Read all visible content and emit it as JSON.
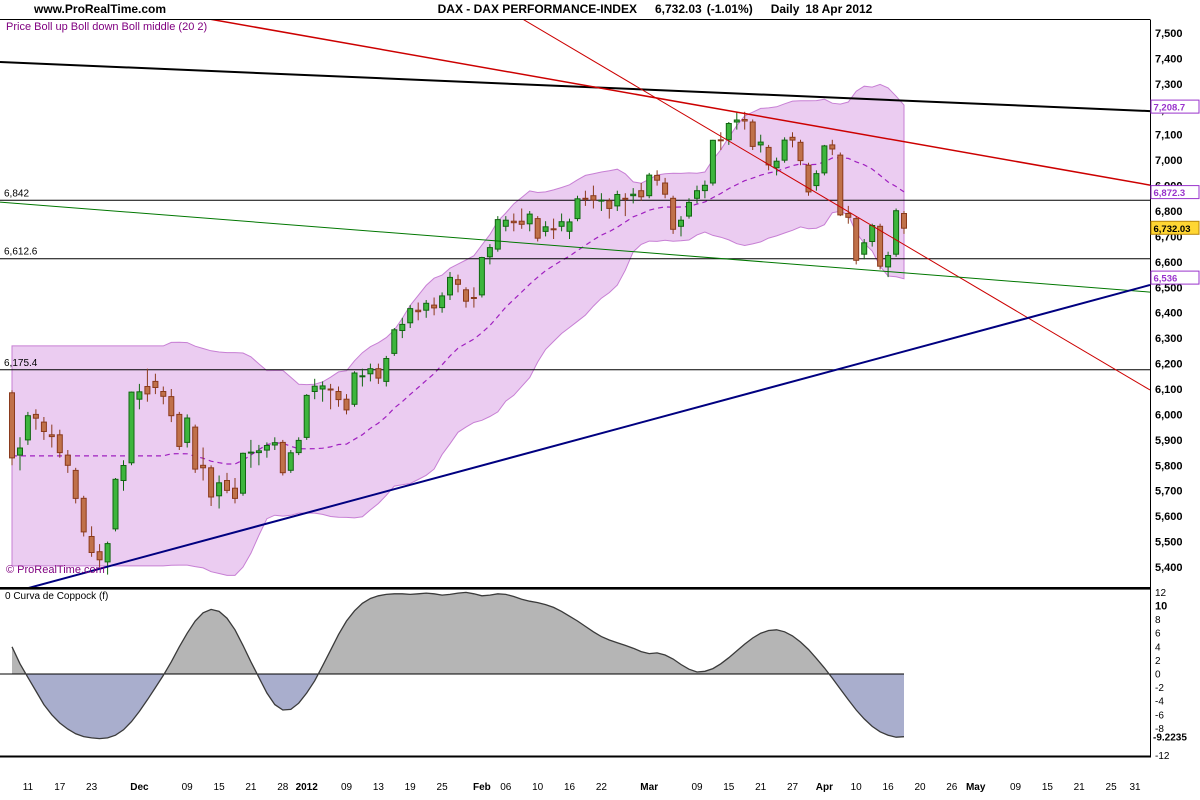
{
  "header": {
    "site": "www.ProRealTime.com",
    "instrument": "DAX - DAX PERFORMANCE-INDEX",
    "last_price": "6,732.03",
    "change": "(-1.01%)",
    "timeframe": "Daily",
    "date": "18 Apr 2012"
  },
  "price_panel": {
    "indicator_label": "Price Boll up Boll down Boll middle (20 2)",
    "copyright": "© ProRealTime.com",
    "level_labels": [
      {
        "label": "6,842",
        "price": 6842
      },
      {
        "label": "6,612.6",
        "price": 6612.6
      },
      {
        "label": "6,175.4",
        "price": 6175.4
      }
    ],
    "axis_labels": [
      {
        "label": "7,500",
        "price": 7500
      },
      {
        "label": "7,400",
        "price": 7400
      },
      {
        "label": "7,300",
        "price": 7300
      },
      {
        "label": "7,200",
        "price": 7200
      },
      {
        "label": "7,100",
        "price": 7100
      },
      {
        "label": "7,000",
        "price": 7000
      },
      {
        "label": "6,900",
        "price": 6900
      },
      {
        "label": "6,800",
        "price": 6800
      },
      {
        "label": "6,700",
        "price": 6700
      },
      {
        "label": "6,600",
        "price": 6600
      },
      {
        "label": "6,500",
        "price": 6500
      },
      {
        "label": "6,400",
        "price": 6400
      },
      {
        "label": "6,300",
        "price": 6300
      },
      {
        "label": "6,200",
        "price": 6200
      },
      {
        "label": "6,100",
        "price": 6100
      },
      {
        "label": "6,000",
        "price": 6000
      },
      {
        "label": "5,900",
        "price": 5900
      },
      {
        "label": "5,800",
        "price": 5800
      },
      {
        "label": "5,700",
        "price": 5700
      },
      {
        "label": "5,600",
        "price": 5600
      },
      {
        "label": "5,500",
        "price": 5500
      },
      {
        "label": "5,400",
        "price": 5400
      }
    ],
    "value_tags": [
      {
        "label": "7,208.7",
        "price": 7208.7,
        "style": "violet"
      },
      {
        "label": "6,872.3",
        "price": 6872.3,
        "style": "violet"
      },
      {
        "label": "6,732.03",
        "price": 6732.03,
        "style": "yellow"
      },
      {
        "label": "6,536",
        "price": 6536,
        "style": "violet"
      }
    ]
  },
  "indicator_panel": {
    "label": "0 Curva de Coppock (f)",
    "axis_labels": [
      {
        "label": "12",
        "value": 12,
        "bold": false
      },
      {
        "label": "10",
        "value": 10,
        "bold": true
      },
      {
        "label": "8",
        "value": 8,
        "bold": false
      },
      {
        "label": "6",
        "value": 6,
        "bold": false
      },
      {
        "label": "4",
        "value": 4,
        "bold": false
      },
      {
        "label": "2",
        "value": 2,
        "bold": false
      },
      {
        "label": "0",
        "value": 0,
        "bold": false
      },
      {
        "label": "-2",
        "value": -2,
        "bold": false
      },
      {
        "label": "-4",
        "value": -4,
        "bold": false
      },
      {
        "label": "-6",
        "value": -6,
        "bold": false
      },
      {
        "label": "-8",
        "value": -8,
        "bold": false
      },
      {
        "label": "-12",
        "value": -12,
        "bold": false
      }
    ],
    "current_value_label": "-9.2235"
  },
  "time_axis": {
    "ticks": [
      {
        "i": 2,
        "label": "11",
        "bold": false
      },
      {
        "i": 6,
        "label": "17",
        "bold": false
      },
      {
        "i": 10,
        "label": "23",
        "bold": false
      },
      {
        "i": 16,
        "label": "Dec",
        "bold": true
      },
      {
        "i": 22,
        "label": "09",
        "bold": false
      },
      {
        "i": 26,
        "label": "15",
        "bold": false
      },
      {
        "i": 30,
        "label": "21",
        "bold": false
      },
      {
        "i": 34,
        "label": "28",
        "bold": false
      },
      {
        "i": 37,
        "label": "2012",
        "bold": true
      },
      {
        "i": 42,
        "label": "09",
        "bold": false
      },
      {
        "i": 46,
        "label": "13",
        "bold": false
      },
      {
        "i": 50,
        "label": "19",
        "bold": false
      },
      {
        "i": 54,
        "label": "25",
        "bold": false
      },
      {
        "i": 59,
        "label": "Feb",
        "bold": true
      },
      {
        "i": 62,
        "label": "06",
        "bold": false
      },
      {
        "i": 66,
        "label": "10",
        "bold": false
      },
      {
        "i": 70,
        "label": "16",
        "bold": false
      },
      {
        "i": 74,
        "label": "22",
        "bold": false
      },
      {
        "i": 80,
        "label": "Mar",
        "bold": true
      },
      {
        "i": 86,
        "label": "09",
        "bold": false
      },
      {
        "i": 90,
        "label": "15",
        "bold": false
      },
      {
        "i": 94,
        "label": "21",
        "bold": false
      },
      {
        "i": 98,
        "label": "27",
        "bold": false
      },
      {
        "i": 102,
        "label": "Apr",
        "bold": true
      },
      {
        "i": 106,
        "label": "10",
        "bold": false
      },
      {
        "i": 110,
        "label": "16",
        "bold": false
      },
      {
        "i": 114,
        "label": "20",
        "bold": false
      },
      {
        "i": 118,
        "label": "26",
        "bold": false
      },
      {
        "i": 121,
        "label": "May",
        "bold": true
      },
      {
        "i": 126,
        "label": "09",
        "bold": false
      },
      {
        "i": 130,
        "label": "15",
        "bold": false
      },
      {
        "i": 134,
        "label": "21",
        "bold": false
      },
      {
        "i": 138,
        "label": "25",
        "bold": false
      },
      {
        "i": 141,
        "label": "31",
        "bold": false
      }
    ]
  },
  "colors": {
    "candle_up_fill": "#3db53d",
    "candle_up_stroke": "#116611",
    "candle_down_fill": "#c0714a",
    "candle_down_stroke": "#8a3a1c",
    "band_fill": "#e9c6f0",
    "band_edge": "#c77fd4",
    "boll_middle": "#a020c0",
    "purple_text": "#800080",
    "coppock_pos_fill": "#b5b5b5",
    "coppock_neg_fill": "#a9aecd",
    "coppock_line": "#3a3a3a",
    "tag_violet": "#9933cc",
    "tag_yellow_bg": "#ffd633",
    "tag_yellow_border": "#b8860b"
  },
  "chart_data": [
    {
      "type": "candlestick",
      "title": "DAX - DAX PERFORMANCE-INDEX",
      "ylim": [
        5400,
        7500
      ],
      "x_slots": 142,
      "bollinger": {
        "period": 20,
        "deviations": 2
      },
      "horizontal_levels": [
        6842,
        6612.6,
        6175.4
      ],
      "trendlines": [
        {
          "name": "black-resistance-trendline",
          "color": "#000000",
          "width": 2,
          "price_at_left": 7386,
          "price_at_right": 7193
        },
        {
          "name": "red-downtrend-shallow",
          "color": "#cc0000",
          "width": 1.5,
          "price_at_left": 7700,
          "price_at_right": 6902
        },
        {
          "name": "red-downtrend-steep",
          "color": "#cc0000",
          "width": 1,
          "price_at_left": 8770,
          "price_at_right": 6096
        },
        {
          "name": "green-downtrend-line",
          "color": "#007700",
          "width": 1,
          "price_at_left": 6835,
          "price_at_right": 6481
        },
        {
          "name": "blue-uptrend-support",
          "color": "#000080",
          "width": 2,
          "price_at_left": 5287,
          "price_at_right": 6509
        }
      ],
      "candles_ohlc": [
        [
          6085,
          6095,
          5800,
          5829
        ],
        [
          5840,
          5910,
          5780,
          5868
        ],
        [
          5900,
          6010,
          5880,
          5995
        ],
        [
          6000,
          6020,
          5940,
          5985
        ],
        [
          5970,
          5990,
          5900,
          5933
        ],
        [
          5920,
          5960,
          5870,
          5913
        ],
        [
          5920,
          5940,
          5830,
          5850
        ],
        [
          5840,
          5860,
          5770,
          5800
        ],
        [
          5780,
          5790,
          5650,
          5670
        ],
        [
          5670,
          5680,
          5520,
          5538
        ],
        [
          5520,
          5560,
          5440,
          5457
        ],
        [
          5460,
          5490,
          5400,
          5428
        ],
        [
          5420,
          5500,
          5370,
          5492
        ],
        [
          5550,
          5750,
          5540,
          5745
        ],
        [
          5740,
          5820,
          5700,
          5799
        ],
        [
          5810,
          6090,
          5800,
          6088
        ],
        [
          6060,
          6120,
          6020,
          6089
        ],
        [
          6110,
          6180,
          6050,
          6081
        ],
        [
          6130,
          6160,
          6080,
          6106
        ],
        [
          6090,
          6110,
          6040,
          6071
        ],
        [
          6070,
          6100,
          5970,
          5995
        ],
        [
          6000,
          6010,
          5860,
          5874
        ],
        [
          5890,
          6000,
          5870,
          5986
        ],
        [
          5950,
          5960,
          5770,
          5785
        ],
        [
          5800,
          5870,
          5740,
          5790
        ],
        [
          5790,
          5800,
          5640,
          5675
        ],
        [
          5680,
          5760,
          5630,
          5731
        ],
        [
          5740,
          5770,
          5690,
          5701
        ],
        [
          5710,
          5750,
          5650,
          5670
        ],
        [
          5690,
          5850,
          5680,
          5847
        ],
        [
          5850,
          5900,
          5790,
          5852
        ],
        [
          5850,
          5880,
          5800,
          5857
        ],
        [
          5860,
          5890,
          5830,
          5878
        ],
        [
          5880,
          5910,
          5860,
          5889
        ],
        [
          5890,
          5900,
          5760,
          5771
        ],
        [
          5780,
          5860,
          5770,
          5849
        ],
        [
          5850,
          5910,
          5840,
          5898
        ],
        [
          5910,
          6080,
          5900,
          6075
        ],
        [
          6090,
          6140,
          6060,
          6111
        ],
        [
          6100,
          6130,
          6050,
          6112
        ],
        [
          6100,
          6120,
          6020,
          6096
        ],
        [
          6090,
          6110,
          6030,
          6058
        ],
        [
          6060,
          6080,
          6000,
          6018
        ],
        [
          6040,
          6170,
          6030,
          6163
        ],
        [
          6150,
          6180,
          6110,
          6152
        ],
        [
          6160,
          6200,
          6130,
          6180
        ],
        [
          6180,
          6200,
          6120,
          6143
        ],
        [
          6130,
          6230,
          6110,
          6220
        ],
        [
          6240,
          6340,
          6230,
          6333
        ],
        [
          6330,
          6380,
          6300,
          6354
        ],
        [
          6360,
          6430,
          6340,
          6416
        ],
        [
          6410,
          6440,
          6370,
          6404
        ],
        [
          6410,
          6450,
          6380,
          6437
        ],
        [
          6430,
          6460,
          6390,
          6419
        ],
        [
          6420,
          6480,
          6400,
          6466
        ],
        [
          6470,
          6560,
          6450,
          6539
        ],
        [
          6530,
          6550,
          6480,
          6512
        ],
        [
          6490,
          6500,
          6420,
          6445
        ],
        [
          6460,
          6500,
          6420,
          6459
        ],
        [
          6470,
          6620,
          6460,
          6617
        ],
        [
          6620,
          6670,
          6590,
          6656
        ],
        [
          6650,
          6780,
          6640,
          6766
        ],
        [
          6740,
          6780,
          6720,
          6764
        ],
        [
          6760,
          6790,
          6720,
          6754
        ],
        [
          6760,
          6810,
          6730,
          6748
        ],
        [
          6750,
          6800,
          6720,
          6788
        ],
        [
          6770,
          6780,
          6680,
          6693
        ],
        [
          6720,
          6760,
          6700,
          6738
        ],
        [
          6730,
          6770,
          6690,
          6728
        ],
        [
          6740,
          6790,
          6720,
          6758
        ],
        [
          6720,
          6770,
          6690,
          6757
        ],
        [
          6770,
          6860,
          6760,
          6848
        ],
        [
          6850,
          6880,
          6820,
          6849
        ],
        [
          6860,
          6900,
          6810,
          6843
        ],
        [
          6840,
          6870,
          6800,
          6843
        ],
        [
          6840,
          6850,
          6770,
          6810
        ],
        [
          6820,
          6880,
          6800,
          6865
        ],
        [
          6850,
          6870,
          6780,
          6849
        ],
        [
          6860,
          6890,
          6830,
          6866
        ],
        [
          6880,
          6910,
          6840,
          6856
        ],
        [
          6860,
          6950,
          6850,
          6941
        ],
        [
          6940,
          6960,
          6900,
          6921
        ],
        [
          6910,
          6930,
          6850,
          6866
        ],
        [
          6850,
          6860,
          6710,
          6728
        ],
        [
          6740,
          6780,
          6700,
          6764
        ],
        [
          6780,
          6850,
          6770,
          6834
        ],
        [
          6850,
          6900,
          6830,
          6880
        ],
        [
          6880,
          6920,
          6850,
          6901
        ],
        [
          6910,
          7080,
          6900,
          7078
        ],
        [
          7080,
          7110,
          7040,
          7079
        ],
        [
          7080,
          7150,
          7060,
          7144
        ],
        [
          7150,
          7190,
          7120,
          7158
        ],
        [
          7160,
          7190,
          7120,
          7154
        ],
        [
          7150,
          7160,
          7040,
          7054
        ],
        [
          7060,
          7100,
          7030,
          7071
        ],
        [
          7050,
          7060,
          6960,
          6981
        ],
        [
          6970,
          7010,
          6940,
          6996
        ],
        [
          7000,
          7090,
          6990,
          7079
        ],
        [
          7090,
          7110,
          7050,
          7079
        ],
        [
          7070,
          7080,
          6980,
          6998
        ],
        [
          6980,
          6990,
          6860,
          6875
        ],
        [
          6900,
          6960,
          6880,
          6947
        ],
        [
          6950,
          7060,
          6940,
          7056
        ],
        [
          7060,
          7080,
          7020,
          7044
        ],
        [
          7020,
          7030,
          6780,
          6785
        ],
        [
          6790,
          6820,
          6750,
          6775
        ],
        [
          6770,
          6780,
          6590,
          6606
        ],
        [
          6630,
          6690,
          6610,
          6675
        ],
        [
          6680,
          6750,
          6660,
          6743
        ],
        [
          6740,
          6750,
          6570,
          6583
        ],
        [
          6580,
          6640,
          6540,
          6625
        ],
        [
          6630,
          6810,
          6620,
          6801
        ],
        [
          6790,
          6800,
          6710,
          6732.03
        ]
      ]
    },
    {
      "type": "area",
      "title": "Curva de Coppock (f)",
      "ylim": [
        -12.6,
        12.6
      ],
      "last_value": -9.2235,
      "values": [
        4.0,
        1.5,
        -0.5,
        -2.5,
        -4.5,
        -6.0,
        -7.2,
        -8.1,
        -8.8,
        -9.2,
        -9.4,
        -9.5,
        -9.4,
        -9.0,
        -8.2,
        -7.0,
        -5.5,
        -3.8,
        -2.0,
        -0.2,
        1.8,
        4.0,
        6.0,
        7.8,
        9.0,
        9.5,
        9.2,
        8.2,
        6.5,
        4.2,
        1.8,
        -0.5,
        -2.8,
        -4.5,
        -5.3,
        -5.2,
        -4.3,
        -2.8,
        -1.0,
        1.2,
        3.5,
        5.8,
        7.8,
        9.3,
        10.4,
        11.1,
        11.5,
        11.7,
        11.8,
        11.8,
        11.7,
        11.8,
        11.9,
        11.8,
        11.6,
        11.7,
        11.9,
        12.0,
        11.8,
        11.5,
        11.6,
        11.8,
        11.7,
        11.4,
        11.0,
        10.7,
        10.5,
        10.2,
        9.8,
        9.2,
        8.5,
        7.8,
        7.0,
        6.2,
        5.5,
        5.0,
        4.6,
        4.2,
        3.8,
        3.3,
        3.0,
        3.1,
        2.8,
        2.2,
        1.4,
        0.7,
        0.3,
        0.4,
        0.8,
        1.5,
        2.4,
        3.4,
        4.4,
        5.3,
        6.0,
        6.4,
        6.5,
        6.2,
        5.6,
        4.7,
        3.6,
        2.3,
        0.9,
        -0.6,
        -2.2,
        -3.8,
        -5.3,
        -6.6,
        -7.7,
        -8.5,
        -9.0,
        -9.3,
        -9.2235
      ]
    }
  ]
}
